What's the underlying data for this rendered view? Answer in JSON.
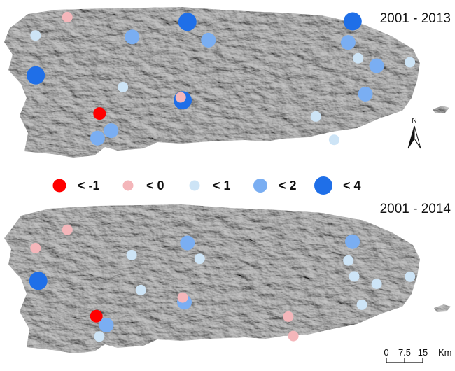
{
  "panels": [
    {
      "title": "2001 - 2013",
      "stations": [
        {
          "cls": 2,
          "lon": -67.136,
          "lat": 18.411
        },
        {
          "cls": 1,
          "lon": -67.009,
          "lat": 18.485
        },
        {
          "cls": 4,
          "lon": -67.135,
          "lat": 18.25
        },
        {
          "cls": 3,
          "lon": -66.75,
          "lat": 18.405
        },
        {
          "cls": 4,
          "lon": -66.529,
          "lat": 18.466
        },
        {
          "cls": 3,
          "lon": -66.445,
          "lat": 18.392
        },
        {
          "cls": 2,
          "lon": -66.787,
          "lat": 18.203
        },
        {
          "cls": 0,
          "lon": -66.88,
          "lat": 18.097
        },
        {
          "cls": 3,
          "lon": -66.834,
          "lat": 18.028
        },
        {
          "cls": 3,
          "lon": -66.888,
          "lat": 17.998
        },
        {
          "cls": 4,
          "lon": -66.548,
          "lat": 18.15
        },
        {
          "cls": 1,
          "lon": -66.556,
          "lat": 18.162
        },
        {
          "cls": 4,
          "lon": -65.869,
          "lat": 18.468
        },
        {
          "cls": 3,
          "lon": -65.887,
          "lat": 18.383
        },
        {
          "cls": 2,
          "lon": -65.847,
          "lat": 18.319
        },
        {
          "cls": 3,
          "lon": -65.773,
          "lat": 18.289
        },
        {
          "cls": 2,
          "lon": -65.64,
          "lat": 18.303
        },
        {
          "cls": 3,
          "lon": -65.818,
          "lat": 18.175
        },
        {
          "cls": 2,
          "lon": -66.016,
          "lat": 18.085
        },
        {
          "cls": 2,
          "lon": -65.943,
          "lat": 17.991
        }
      ]
    },
    {
      "title": "2001 - 2014",
      "stations": [
        {
          "cls": 1,
          "lon": -67.136,
          "lat": 18.344
        },
        {
          "cls": 1,
          "lon": -67.009,
          "lat": 18.418
        },
        {
          "cls": 4,
          "lon": -67.125,
          "lat": 18.212
        },
        {
          "cls": 2,
          "lon": -66.752,
          "lat": 18.316
        },
        {
          "cls": 3,
          "lon": -66.529,
          "lat": 18.365
        },
        {
          "cls": 2,
          "lon": -66.48,
          "lat": 18.301
        },
        {
          "cls": 2,
          "lon": -66.715,
          "lat": 18.175
        },
        {
          "cls": 0,
          "lon": -66.893,
          "lat": 18.07
        },
        {
          "cls": 3,
          "lon": -66.853,
          "lat": 18.034
        },
        {
          "cls": 2,
          "lon": -66.881,
          "lat": 17.988
        },
        {
          "cls": 3,
          "lon": -66.541,
          "lat": 18.126
        },
        {
          "cls": 1,
          "lon": -66.548,
          "lat": 18.145
        },
        {
          "cls": 3,
          "lon": -65.87,
          "lat": 18.37
        },
        {
          "cls": 2,
          "lon": -65.886,
          "lat": 18.294
        },
        {
          "cls": 2,
          "lon": -65.863,
          "lat": 18.23
        },
        {
          "cls": 2,
          "lon": -65.773,
          "lat": 18.2
        },
        {
          "cls": 2,
          "lon": -65.64,
          "lat": 18.229
        },
        {
          "cls": 2,
          "lon": -65.832,
          "lat": 18.116
        },
        {
          "cls": 1,
          "lon": -66.126,
          "lat": 18.068
        },
        {
          "cls": 1,
          "lon": -66.106,
          "lat": 17.99
        }
      ]
    }
  ],
  "legend": {
    "classes": [
      {
        "label": "< -1",
        "color": "#ff0000"
      },
      {
        "label": "< 0",
        "color": "#f4b6ba"
      },
      {
        "label": "< 1",
        "color": "#cde4f6"
      },
      {
        "label": "< 2",
        "color": "#7aaef2"
      },
      {
        "label": "< 4",
        "color": "#1f6fe8"
      }
    ]
  },
  "north_arrow": {
    "label": "N"
  },
  "scale_bar": {
    "ticks": [
      "0",
      "7.5",
      "15"
    ],
    "unit": "Km"
  }
}
